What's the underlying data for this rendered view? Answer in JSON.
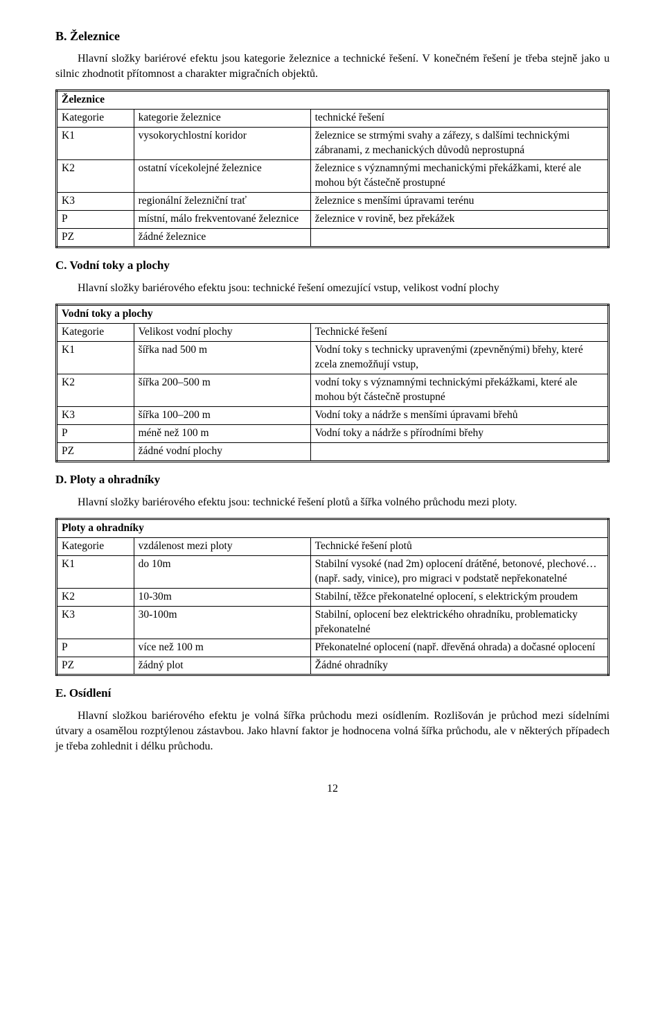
{
  "colors": {
    "text": "#000000",
    "bg": "#ffffff",
    "border": "#000000"
  },
  "sectionB": {
    "heading": "B. Železnice",
    "intro": "Hlavní složky bariérové efektu jsou kategorie železnice a technické řešení. V konečném řešení je třeba stejně jako u silnic zhodnotit přítomnost a charakter migračních objektů.",
    "table": {
      "title": "Železnice",
      "headers": [
        "Kategorie",
        "kategorie železnice",
        "technické řešení"
      ],
      "rows": [
        [
          "K1",
          "vysokorychlostní koridor",
          "železnice se strmými svahy a zářezy, s dalšími technickými zábranami, z mechanických důvodů neprostupná"
        ],
        [
          "K2",
          "ostatní vícekolejné železnice",
          "železnice s významnými mechanickými překážkami, které ale mohou být částečně prostupné"
        ],
        [
          "K3",
          "regionální železniční trať",
          "železnice s menšími úpravami terénu"
        ],
        [
          "P",
          "místní, málo frekventované železnice",
          "železnice v rovině, bez překážek"
        ],
        [
          "PZ",
          "žádné železnice",
          ""
        ]
      ]
    }
  },
  "sectionC": {
    "heading": "C. Vodní toky a plochy",
    "intro": "Hlavní složky bariérového efektu jsou: technické řešení omezující vstup, velikost vodní plochy",
    "table": {
      "title": "Vodní toky a plochy",
      "headers": [
        "Kategorie",
        "Velikost vodní plochy",
        "Technické řešení"
      ],
      "rows": [
        [
          "K1",
          "šířka nad 500 m",
          "Vodní toky s technicky upravenými (zpevněnými) břehy, které zcela znemožňují vstup,"
        ],
        [
          "K2",
          "šířka 200–500 m",
          "vodní toky s významnými technickými překážkami, které ale mohou být částečně prostupné"
        ],
        [
          "K3",
          "šířka 100–200 m",
          "Vodní toky a nádrže s menšími úpravami břehů"
        ],
        [
          "P",
          "méně než 100 m",
          "Vodní toky a nádrže s přírodními břehy"
        ],
        [
          "PZ",
          "žádné vodní plochy",
          ""
        ]
      ]
    }
  },
  "sectionD": {
    "heading": "D. Ploty a ohradníky",
    "intro": "Hlavní složky bariérového efektu jsou: technické řešení plotů a šířka volného průchodu mezi ploty.",
    "table": {
      "title": "Ploty a ohradníky",
      "headers": [
        "Kategorie",
        "vzdálenost mezi ploty",
        "Technické řešení plotů"
      ],
      "rows": [
        [
          "K1",
          "do 10m",
          "Stabilní vysoké (nad 2m) oplocení drátěné, betonové, plechové… (např. sady, vinice), pro migraci v podstatě nepřekonatelné"
        ],
        [
          "K2",
          "10-30m",
          "Stabilní, těžce překonatelné oplocení, s elektrickým proudem"
        ],
        [
          "K3",
          "30-100m",
          "Stabilní, oplocení bez elektrického ohradníku, problematicky překonatelné"
        ],
        [
          "P",
          "více než 100 m",
          "Překonatelné oplocení (např. dřevěná ohrada) a dočasné oplocení"
        ],
        [
          "PZ",
          "žádný plot",
          "Žádné ohradníky"
        ]
      ]
    }
  },
  "sectionE": {
    "heading": "E. Osídlení",
    "intro": "Hlavní složkou bariérového efektu je volná šířka průchodu mezi osídlením. Rozlišován je průchod mezi sídelními útvary a osamělou rozptýlenou zástavbou. Jako hlavní faktor je hodnocena volná šířka průchodu, ale v některých případech je třeba zohlednit i délku průchodu."
  },
  "pageNumber": "12"
}
